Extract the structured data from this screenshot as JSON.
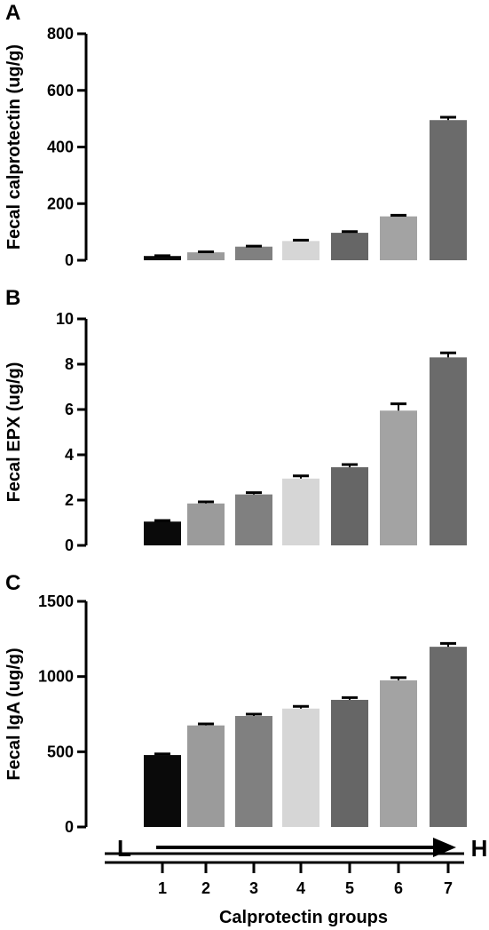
{
  "chart_data": [
    {
      "type": "bar",
      "panel": "A",
      "ylabel": "Fecal calprotectin (ug/g)",
      "ylim": [
        0,
        800
      ],
      "yticks": [
        0,
        200,
        400,
        600,
        800
      ],
      "categories": [
        "1",
        "2",
        "3",
        "4",
        "5",
        "6",
        "7"
      ],
      "values": [
        15,
        28,
        48,
        68,
        97,
        155,
        495
      ],
      "errors": [
        1,
        2,
        2,
        3,
        4,
        4,
        10
      ],
      "colors": [
        "#0a0a0a",
        "#9b9b9b",
        "#808080",
        "#d6d6d6",
        "#666666",
        "#a3a3a3",
        "#6b6b6b"
      ]
    },
    {
      "type": "bar",
      "panel": "B",
      "ylabel": "Fecal EPX (ug/g)",
      "ylim": [
        0,
        10
      ],
      "yticks": [
        0,
        2,
        4,
        6,
        8,
        10
      ],
      "categories": [
        "1",
        "2",
        "3",
        "4",
        "5",
        "6",
        "7"
      ],
      "values": [
        1.05,
        1.85,
        2.25,
        2.95,
        3.45,
        5.95,
        8.3
      ],
      "errors": [
        0.05,
        0.07,
        0.08,
        0.12,
        0.12,
        0.3,
        0.2
      ],
      "colors": [
        "#0a0a0a",
        "#9b9b9b",
        "#808080",
        "#d6d6d6",
        "#666666",
        "#a3a3a3",
        "#6b6b6b"
      ]
    },
    {
      "type": "bar",
      "panel": "C",
      "ylabel": "Fecal IgA (ug/g)",
      "ylim": [
        0,
        1500
      ],
      "yticks": [
        0,
        500,
        1000,
        1500
      ],
      "categories": [
        "1",
        "2",
        "3",
        "4",
        "5",
        "6",
        "7"
      ],
      "values": [
        478,
        675,
        738,
        787,
        845,
        975,
        1198
      ],
      "errors": [
        8,
        10,
        12,
        15,
        15,
        18,
        22
      ],
      "colors": [
        "#0a0a0a",
        "#9b9b9b",
        "#808080",
        "#d6d6d6",
        "#666666",
        "#a3a3a3",
        "#6b6b6b"
      ],
      "xlabel": "Calprotectin groups",
      "gradient_labels": [
        "L",
        "H"
      ]
    }
  ]
}
